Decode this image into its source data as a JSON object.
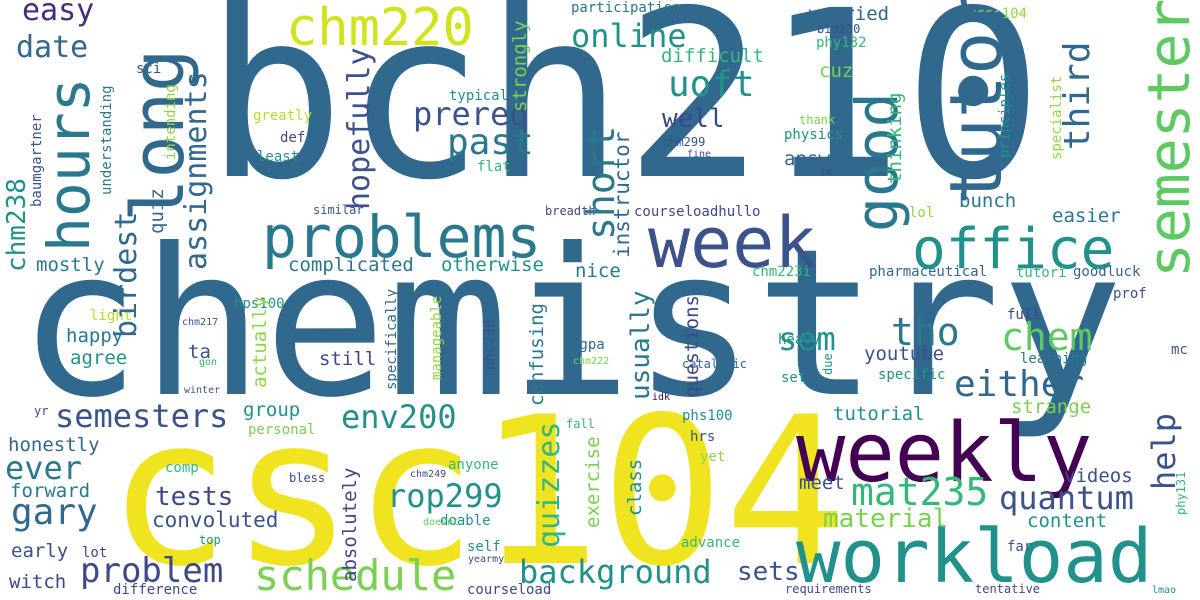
{
  "palette": {
    "dark_purple": "#440154",
    "indigo": "#3b528b",
    "blue_teal": "#31688e",
    "teal": "#21918c",
    "green_teal": "#35b779",
    "light_green": "#90d743",
    "yellow": "#fde725"
  },
  "words": [
    {
      "text": "bch210",
      "color": "#31688e"
    },
    {
      "text": "chemistry",
      "color": "#31688e"
    },
    {
      "text": "csc104",
      "color": "#f0e31f"
    },
    {
      "text": "weekly",
      "color": "#440154"
    },
    {
      "text": "workload",
      "color": "#21918c"
    },
    {
      "text": "week",
      "color": "#3b528b"
    },
    {
      "text": "long",
      "color": "#31688e"
    },
    {
      "text": "problems",
      "color": "#2a788e"
    },
    {
      "text": "hours",
      "color": "#2a788e"
    },
    {
      "text": "tutor",
      "color": "#31688e"
    },
    {
      "text": "semester",
      "color": "#5ec962"
    },
    {
      "text": "office",
      "color": "#21918c"
    },
    {
      "text": "good",
      "color": "#2a788e"
    },
    {
      "text": "chm220",
      "color": "#d2e21b"
    },
    {
      "text": "schedule",
      "color": "#7ad151"
    },
    {
      "text": "background",
      "color": "#21918c"
    },
    {
      "text": "rop299",
      "color": "#21918c"
    },
    {
      "text": "mat235",
      "color": "#35b779"
    },
    {
      "text": "env200",
      "color": "#21918c"
    },
    {
      "text": "semesters",
      "color": "#3b528b"
    },
    {
      "text": "problem",
      "color": "#3e4989"
    },
    {
      "text": "past",
      "color": "#2a788e"
    },
    {
      "text": "prereq",
      "color": "#3b528b"
    },
    {
      "text": "online",
      "color": "#21918c"
    },
    {
      "text": "uoft",
      "color": "#21918c"
    },
    {
      "text": "either",
      "color": "#31688e"
    },
    {
      "text": "quantum",
      "color": "#3b528b"
    },
    {
      "text": "chem",
      "color": "#5ec962"
    },
    {
      "text": "tho",
      "color": "#2a788e"
    },
    {
      "text": "sem",
      "color": "#21918c"
    },
    {
      "text": "ever",
      "color": "#2a788e"
    },
    {
      "text": "gary",
      "color": "#31688e"
    },
    {
      "text": "tests",
      "color": "#3e4989"
    },
    {
      "text": "date",
      "color": "#31688e"
    },
    {
      "text": "easy",
      "color": "#472c7a"
    },
    {
      "text": "third",
      "color": "#31688e"
    },
    {
      "text": "hopefully",
      "color": "#3b528b"
    },
    {
      "text": "assignments",
      "color": "#31688e"
    },
    {
      "text": "birdest",
      "color": "#31688e"
    },
    {
      "text": "short",
      "color": "#2a788e"
    },
    {
      "text": "quizzes",
      "color": "#35b779"
    },
    {
      "text": "material",
      "color": "#7ad151"
    },
    {
      "text": "help",
      "color": "#3b528b"
    },
    {
      "text": "usually",
      "color": "#2a788e"
    },
    {
      "text": "well",
      "color": "#3e4989"
    },
    {
      "text": "chm238",
      "color": "#21918c"
    },
    {
      "text": "convoluted",
      "color": "#3b528b"
    },
    {
      "text": "sets",
      "color": "#3b528b"
    },
    {
      "text": "strongly",
      "color": "#7ad151"
    },
    {
      "text": "instructor",
      "color": "#31688e"
    },
    {
      "text": "questions",
      "color": "#3e4989"
    },
    {
      "text": "confusing",
      "color": "#2a788e"
    },
    {
      "text": "absolutely",
      "color": "#3e4989"
    },
    {
      "text": "exercise",
      "color": "#7ad151"
    },
    {
      "text": "class",
      "color": "#21918c"
    },
    {
      "text": "complicated",
      "color": "#2a788e"
    },
    {
      "text": "otherwise",
      "color": "#21918c"
    },
    {
      "text": "mostly",
      "color": "#2a788e"
    },
    {
      "text": "difficult",
      "color": "#35b779"
    },
    {
      "text": "worried",
      "color": "#31688e"
    },
    {
      "text": "participation",
      "color": "#2a788e"
    },
    {
      "text": "youtube",
      "color": "#3b528b"
    },
    {
      "text": "content",
      "color": "#21918c"
    },
    {
      "text": "videos",
      "color": "#3b528b"
    },
    {
      "text": "tutorial",
      "color": "#21918c"
    },
    {
      "text": "strange",
      "color": "#7ad151"
    },
    {
      "text": "meet",
      "color": "#3b528b"
    },
    {
      "text": "answer",
      "color": "#31688e"
    },
    {
      "text": "bunch",
      "color": "#2a788e"
    },
    {
      "text": "easier",
      "color": "#2a788e"
    },
    {
      "text": "thinking",
      "color": "#35b779"
    },
    {
      "text": "group",
      "color": "#21918c"
    },
    {
      "text": "actually",
      "color": "#90d743"
    },
    {
      "text": "nice",
      "color": "#2a788e"
    },
    {
      "text": "still",
      "color": "#3e4989"
    },
    {
      "text": "agree",
      "color": "#21918c"
    },
    {
      "text": "happy",
      "color": "#2a788e"
    },
    {
      "text": "ta",
      "color": "#3b528b"
    },
    {
      "text": "forward",
      "color": "#2a788e"
    },
    {
      "text": "honestly",
      "color": "#31688e"
    },
    {
      "text": "early",
      "color": "#3b528b"
    },
    {
      "text": "witch",
      "color": "#3e4989"
    },
    {
      "text": "difference",
      "color": "#3e4989"
    },
    {
      "text": "courseload",
      "color": "#3e4989"
    },
    {
      "text": "advance",
      "color": "#35b779"
    },
    {
      "text": "lot",
      "color": "#3e4989"
    },
    {
      "text": "doable",
      "color": "#21918c"
    },
    {
      "text": "self",
      "color": "#21918c"
    },
    {
      "text": "anyone",
      "color": "#35b779"
    },
    {
      "text": "hrs",
      "color": "#3b528b"
    },
    {
      "text": "yet",
      "color": "#90d743"
    },
    {
      "text": "phs100",
      "color": "#21918c"
    },
    {
      "text": "cuz",
      "color": "#7ad151"
    },
    {
      "text": "phy132",
      "color": "#35b779"
    },
    {
      "text": "bio230",
      "color": "#3b528b"
    },
    {
      "text": "ucsc104",
      "color": "#90d743"
    },
    {
      "text": "physics",
      "color": "#21918c"
    },
    {
      "text": "thank",
      "color": "#7ad151"
    },
    {
      "text": "chm299",
      "color": "#3b528b"
    },
    {
      "text": "fine",
      "color": "#3b528b"
    },
    {
      "text": "im",
      "color": "#3e4989"
    },
    {
      "text": "courseloadhullo",
      "color": "#3e4989"
    },
    {
      "text": "breadth",
      "color": "#3e4989"
    },
    {
      "text": "similar",
      "color": "#3b528b"
    },
    {
      "text": "hps100",
      "color": "#21918c"
    },
    {
      "text": "chm223i",
      "color": "#35b779"
    },
    {
      "text": "pharmaceutical",
      "color": "#31688e"
    },
    {
      "text": "tutori",
      "color": "#35b779"
    },
    {
      "text": "goodluck",
      "color": "#31688e"
    },
    {
      "text": "prof",
      "color": "#3b528b"
    },
    {
      "text": "full",
      "color": "#3e4989"
    },
    {
      "text": "learning",
      "color": "#2a788e"
    },
    {
      "text": "mc",
      "color": "#3b528b"
    },
    {
      "text": "heavy",
      "color": "#21918c"
    },
    {
      "text": "specific",
      "color": "#21918c"
    },
    {
      "text": "set",
      "color": "#21918c"
    },
    {
      "text": "due",
      "color": "#21918c"
    },
    {
      "text": "catalytic",
      "color": "#31688e"
    },
    {
      "text": "cgpa",
      "color": "#31688e"
    },
    {
      "text": "chm222",
      "color": "#7ad151"
    },
    {
      "text": "phc230",
      "color": "#3b528b"
    },
    {
      "text": "idk",
      "color": "#440154"
    },
    {
      "text": "specifically",
      "color": "#31688e"
    },
    {
      "text": "manageable",
      "color": "#90d743"
    },
    {
      "text": "chm249",
      "color": "#3e4989"
    },
    {
      "text": "doesnt",
      "color": "#5ec962"
    },
    {
      "text": "yearmy",
      "color": "#3e4989"
    },
    {
      "text": "fall",
      "color": "#35b779"
    },
    {
      "text": "bless",
      "color": "#3e4989"
    },
    {
      "text": "comp",
      "color": "#35b779"
    },
    {
      "text": "personal",
      "color": "#7ad151"
    },
    {
      "text": "top",
      "color": "#21918c"
    },
    {
      "text": "yr",
      "color": "#3e4989"
    },
    {
      "text": "winter",
      "color": "#3b528b"
    },
    {
      "text": "gon",
      "color": "#35b779"
    },
    {
      "text": "chm217",
      "color": "#3b528b"
    },
    {
      "text": "light",
      "color": "#b5de2b"
    },
    {
      "text": "quiz",
      "color": "#31688e"
    },
    {
      "text": "def",
      "color": "#3e4989"
    },
    {
      "text": "least",
      "color": "#21918c"
    },
    {
      "text": "greatly",
      "color": "#b5de2b"
    },
    {
      "text": "intending",
      "color": "#90d743"
    },
    {
      "text": "understanding",
      "color": "#2a788e"
    },
    {
      "text": "sci",
      "color": "#3b528b"
    },
    {
      "text": "baumgartner",
      "color": "#3b528b"
    },
    {
      "text": "typical",
      "color": "#21918c"
    },
    {
      "text": "flat",
      "color": "#35b779"
    },
    {
      "text": "lol",
      "color": "#90d743"
    },
    {
      "text": "principles",
      "color": "#21918c"
    },
    {
      "text": "specialist",
      "color": "#90d743"
    },
    {
      "text": "tentative",
      "color": "#3e4989"
    },
    {
      "text": "requirements",
      "color": "#3e4989"
    },
    {
      "text": "far",
      "color": "#3b528b"
    },
    {
      "text": "phy131",
      "color": "#35b779"
    },
    {
      "text": "lmao",
      "color": "#21918c"
    }
  ]
}
